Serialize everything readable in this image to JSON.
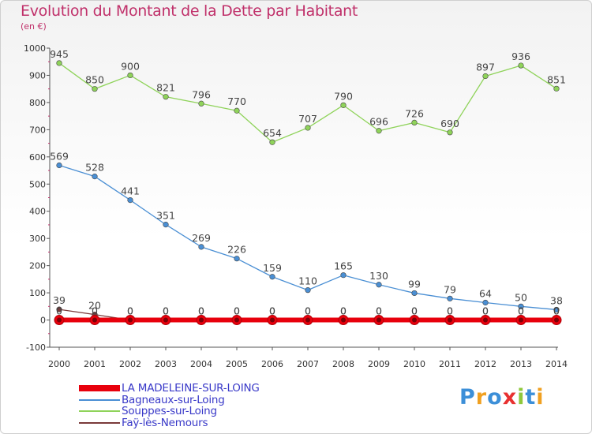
{
  "title": "Evolution du Montant de la Dette par Habitant",
  "unit_label": "(en €)",
  "logo_text": "Proxiti",
  "chart_data": {
    "type": "line",
    "x": [
      2000,
      2001,
      2002,
      2003,
      2004,
      2005,
      2006,
      2007,
      2008,
      2009,
      2010,
      2011,
      2012,
      2013,
      2014
    ],
    "ylim": [
      -100,
      1000
    ],
    "yticks": [
      -100,
      0,
      100,
      200,
      300,
      400,
      500,
      600,
      700,
      800,
      900,
      1000
    ],
    "grid": false,
    "legend_position": "bottom-left",
    "series": [
      {
        "name": "Souppes-sur-Loing",
        "color": "#8fd35a",
        "values": [
          945,
          850,
          900,
          821,
          796,
          770,
          654,
          707,
          790,
          696,
          726,
          690,
          897,
          936,
          851
        ],
        "labels": [
          "945",
          "850",
          "900",
          "821",
          "796",
          "770",
          "654",
          "707",
          "790",
          "696",
          "726",
          "690",
          "897",
          "936",
          "851"
        ]
      },
      {
        "name": "Bagneaux-sur-Loing",
        "color": "#4a8fd4",
        "values": [
          569,
          528,
          441,
          351,
          269,
          226,
          159,
          110,
          165,
          130,
          99,
          79,
          64,
          50,
          38
        ],
        "labels": [
          "569",
          "528",
          "441",
          "351",
          "269",
          "226",
          "159",
          "110",
          "165",
          "130",
          "99",
          "79",
          "64",
          "50",
          "38"
        ]
      },
      {
        "name": "Faÿ-lès-Nemours",
        "color": "#7a3a3a",
        "values": [
          39,
          20,
          0,
          0,
          0,
          0,
          0,
          0,
          0,
          0,
          0,
          0,
          0,
          0,
          0
        ],
        "labels": [
          "39",
          "20",
          "0",
          "0",
          "0",
          "0",
          "0",
          "0",
          "0",
          "0",
          "0",
          "0",
          "0",
          "0",
          "0"
        ]
      },
      {
        "name": "LA MADELEINE-SUR-LOING",
        "color": "#e8000c",
        "values": [
          0,
          0,
          0,
          0,
          0,
          0,
          0,
          0,
          0,
          0,
          0,
          0,
          0,
          0,
          0
        ],
        "labels": [
          "0",
          "0",
          "0",
          "0",
          "0",
          "0",
          "0",
          "0",
          "0",
          "0",
          "0",
          "0",
          "0",
          "0",
          "0"
        ]
      }
    ],
    "legend_order": [
      "LA MADELEINE-SUR-LOING",
      "Bagneaux-sur-Loing",
      "Souppes-sur-Loing",
      "Faÿ-lès-Nemours"
    ]
  }
}
